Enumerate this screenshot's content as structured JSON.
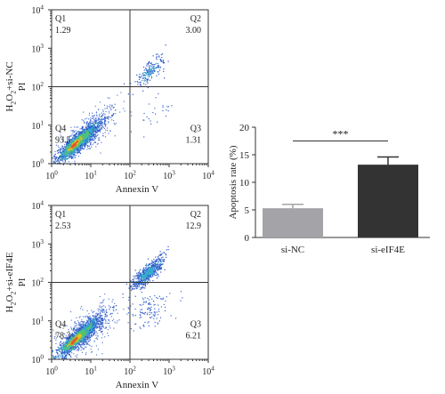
{
  "chart_data": [
    {
      "type": "scatter",
      "panel": "flow-top",
      "row_label": "H2O2+si-NC",
      "ylabel": "PI",
      "xlabel": "Annexin V",
      "log_scale": true,
      "xlim": [
        1,
        10000
      ],
      "ylim": [
        1,
        10000
      ],
      "gate_x": 100,
      "gate_y": 100,
      "ticks": [
        "10^0",
        "10^1",
        "10^2",
        "10^3",
        "10^4"
      ],
      "quadrants": [
        {
          "name": "Q1",
          "value": "1.29"
        },
        {
          "name": "Q2",
          "value": "3.00"
        },
        {
          "name": "Q3",
          "value": "1.31"
        },
        {
          "name": "Q4",
          "value": "93.5"
        }
      ]
    },
    {
      "type": "scatter",
      "panel": "flow-bottom",
      "row_label": "H2O2+si-eIF4E",
      "ylabel": "PI",
      "xlabel": "Annexin V",
      "log_scale": true,
      "xlim": [
        1,
        10000
      ],
      "ylim": [
        1,
        10000
      ],
      "gate_x": 100,
      "gate_y": 100,
      "ticks": [
        "10^0",
        "10^1",
        "10^2",
        "10^3",
        "10^4"
      ],
      "quadrants": [
        {
          "name": "Q1",
          "value": "2.53"
        },
        {
          "name": "Q2",
          "value": "12.9"
        },
        {
          "name": "Q3",
          "value": "6.21"
        },
        {
          "name": "Q4",
          "value": "78.3"
        }
      ]
    },
    {
      "type": "bar",
      "panel": "apoptosis-bar",
      "categories": [
        "si-NC",
        "si-eIF4E"
      ],
      "values": [
        5.3,
        13.2
      ],
      "errors": [
        0.7,
        1.4
      ],
      "bar_colors": [
        "#a3a3a8",
        "#333333"
      ],
      "ylabel": "Apoptosis rate (%)",
      "ylim": [
        0,
        20
      ],
      "yticks": [
        "0",
        "5",
        "10",
        "15",
        "20"
      ],
      "significance": "***"
    }
  ]
}
